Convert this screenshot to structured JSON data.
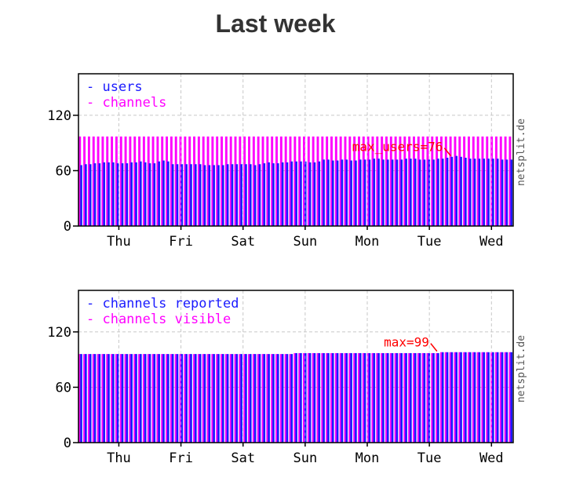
{
  "page": {
    "title": "Last week"
  },
  "colors": {
    "primary": "#1a1aff",
    "secondary": "#ff00ff",
    "annotation": "#ff0000",
    "grid": "#c8c8c8",
    "axis": "#000000"
  },
  "chart_data": [
    {
      "type": "bar",
      "title": "",
      "xlabel": "",
      "ylabel": "",
      "ylim": [
        0,
        165
      ],
      "yticks": [
        "0",
        "60",
        "120"
      ],
      "ytick_values": [
        0,
        60,
        120
      ],
      "xticks": [
        "Thu",
        "Fri",
        "Sat",
        "Sun",
        "Mon",
        "Tue",
        "Wed"
      ],
      "watermark": "netsplit.de",
      "legend_position": "top-left",
      "grid": true,
      "series": [
        {
          "name": "users",
          "color": "#1a1aff",
          "values": [
            66,
            67,
            67,
            68,
            68,
            69,
            69,
            69,
            68,
            68,
            68,
            69,
            69,
            70,
            69,
            68,
            68,
            70,
            71,
            70,
            67,
            67,
            67,
            67,
            67,
            67,
            67,
            66,
            66,
            66,
            66,
            66,
            67,
            67,
            67,
            67,
            67,
            67,
            66,
            67,
            68,
            69,
            68,
            68,
            69,
            69,
            70,
            70,
            70,
            70,
            69,
            69,
            70,
            72,
            72,
            71,
            71,
            72,
            72,
            71,
            71,
            72,
            72,
            72,
            73,
            73,
            72,
            72,
            72,
            72,
            72,
            73,
            73,
            73,
            72,
            72,
            72,
            72,
            73,
            73,
            74,
            75,
            76,
            75,
            74,
            73,
            73,
            73,
            73,
            73,
            73,
            73,
            72,
            72,
            72
          ]
        },
        {
          "name": "channels",
          "color": "#ff00ff",
          "values": [
            97,
            97,
            97,
            97,
            97,
            97,
            97,
            97,
            97,
            97,
            97,
            97,
            97,
            97,
            97,
            97,
            97,
            97,
            97,
            97,
            97,
            97,
            97,
            97,
            97,
            97,
            97,
            97,
            97,
            97,
            97,
            97,
            97,
            97,
            97,
            97,
            97,
            97,
            97,
            97,
            97,
            97,
            97,
            97,
            97,
            97,
            97,
            97,
            97,
            97,
            97,
            97,
            97,
            97,
            97,
            97,
            97,
            97,
            97,
            97,
            97,
            97,
            97,
            97,
            97,
            97,
            97,
            97,
            97,
            97,
            97,
            97,
            97,
            97,
            97,
            97,
            97,
            97,
            97,
            97,
            97,
            97,
            97,
            97,
            97,
            97,
            97,
            97,
            97,
            97,
            97,
            97,
            97,
            97,
            97
          ]
        }
      ],
      "annotation": {
        "text": "max_users=76",
        "x_index": 81,
        "value": 76
      }
    },
    {
      "type": "bar",
      "title": "",
      "xlabel": "",
      "ylabel": "",
      "ylim": [
        0,
        165
      ],
      "yticks": [
        "0",
        "60",
        "120"
      ],
      "ytick_values": [
        0,
        60,
        120
      ],
      "xticks": [
        "Thu",
        "Fri",
        "Sat",
        "Sun",
        "Mon",
        "Tue",
        "Wed"
      ],
      "watermark": "netsplit.de",
      "legend_position": "top-left",
      "grid": true,
      "series": [
        {
          "name": "channels reported",
          "color": "#1a1aff",
          "values": [
            96,
            96,
            96,
            96,
            96,
            96,
            96,
            96,
            96,
            96,
            96,
            96,
            96,
            96,
            96,
            96,
            96,
            96,
            96,
            96,
            96,
            96,
            96,
            96,
            96,
            96,
            96,
            96,
            96,
            96,
            96,
            96,
            96,
            96,
            96,
            96,
            96,
            96,
            96,
            96,
            96,
            96,
            96,
            96,
            96,
            96,
            96,
            97,
            97,
            97,
            97,
            97,
            97,
            97,
            97,
            97,
            97,
            97,
            97,
            97,
            97,
            97,
            97,
            97,
            97,
            97,
            97,
            97,
            97,
            97,
            97,
            97,
            97,
            97,
            97,
            97,
            97,
            97,
            97,
            98,
            98,
            98,
            98,
            98,
            98,
            98,
            98,
            98,
            98,
            98,
            98,
            98,
            98,
            98,
            98
          ]
        },
        {
          "name": "channels visible",
          "color": "#ff00ff",
          "values": [
            96,
            96,
            96,
            96,
            96,
            96,
            96,
            96,
            96,
            96,
            96,
            96,
            96,
            96,
            96,
            96,
            96,
            96,
            96,
            96,
            96,
            96,
            96,
            96,
            96,
            96,
            96,
            96,
            96,
            96,
            96,
            96,
            96,
            96,
            96,
            96,
            96,
            96,
            96,
            96,
            96,
            96,
            96,
            96,
            96,
            96,
            96,
            97,
            97,
            97,
            97,
            97,
            97,
            97,
            97,
            97,
            97,
            97,
            97,
            97,
            97,
            97,
            97,
            97,
            97,
            97,
            97,
            97,
            97,
            97,
            97,
            97,
            97,
            97,
            97,
            97,
            97,
            97,
            97,
            98,
            98,
            98,
            98,
            98,
            98,
            98,
            98,
            98,
            98,
            98,
            98,
            98,
            98,
            98,
            98
          ]
        }
      ],
      "annotation": {
        "text": "max=99",
        "x_index": 78,
        "value": 99
      }
    }
  ]
}
